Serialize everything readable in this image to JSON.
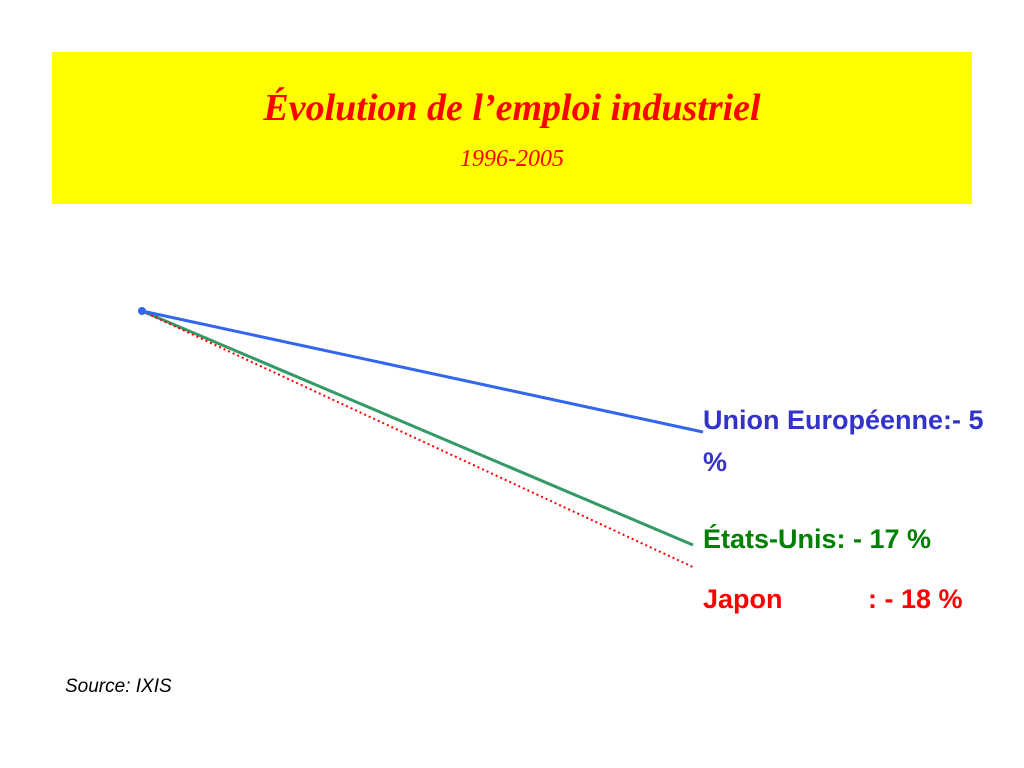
{
  "header": {
    "title": "Évolution de l’emploi industriel",
    "subtitle": "1996-2005"
  },
  "labels": [
    {
      "text": "Union Européenne:- 5 %"
    },
    {
      "text": "États-Unis: - 17 %"
    },
    {
      "name": "Japon",
      "value": ": - 18 %"
    }
  ],
  "source": "Source: IXIS"
}
